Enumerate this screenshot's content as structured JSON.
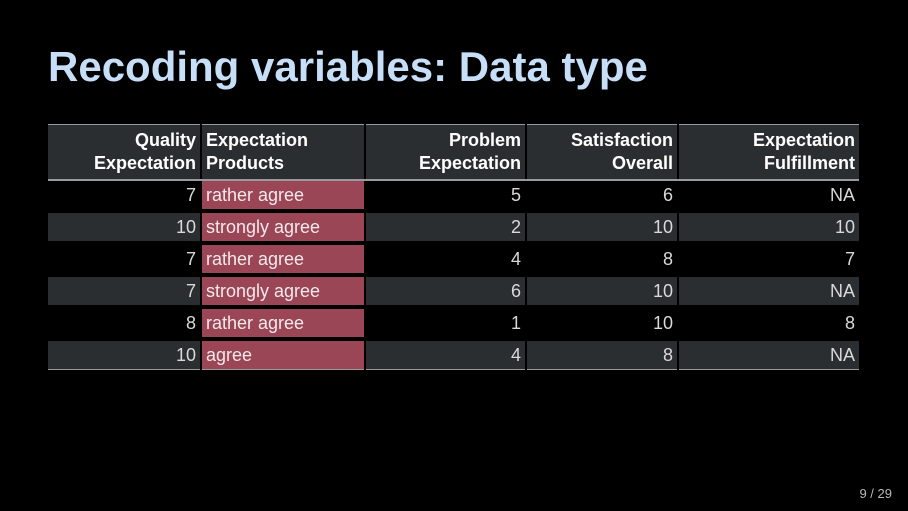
{
  "slide": {
    "title": "Recoding variables: Data type",
    "page_number": "9 / 29"
  },
  "table": {
    "headers": [
      {
        "line1": "Quality",
        "line2": "Expectation"
      },
      {
        "line1": "Expectation",
        "line2": "Products"
      },
      {
        "line1": "Problem",
        "line2": "Expectation"
      },
      {
        "line1": "Satisfaction",
        "line2": "Overall"
      },
      {
        "line1": "Expectation",
        "line2": "Fulfillment"
      }
    ],
    "rows": [
      [
        "7",
        "rather agree",
        "5",
        "6",
        "NA"
      ],
      [
        "10",
        "strongly agree",
        "2",
        "10",
        "10"
      ],
      [
        "7",
        "rather agree",
        "4",
        "8",
        "7"
      ],
      [
        "7",
        "strongly agree",
        "6",
        "10",
        "NA"
      ],
      [
        "8",
        "rather agree",
        "1",
        "10",
        "8"
      ],
      [
        "10",
        "agree",
        "4",
        "8",
        "NA"
      ]
    ],
    "highlight_color": "#9a4657",
    "highlighted_column": "Expectation Products"
  }
}
